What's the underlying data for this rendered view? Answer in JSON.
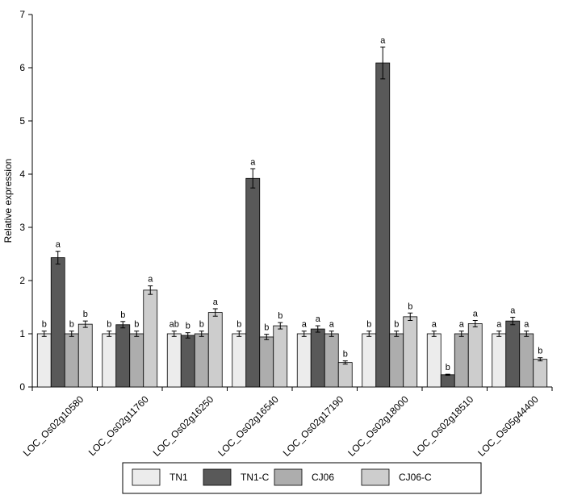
{
  "chart_data": {
    "type": "bar",
    "title": "",
    "xlabel": "",
    "ylabel": "Relative expression",
    "ylim": [
      0,
      7
    ],
    "yticks": [
      0,
      1,
      2,
      3,
      4,
      5,
      6,
      7
    ],
    "grid": false,
    "legend_position": "bottom",
    "categories": [
      "LOC_Os02g10580",
      "LOC_Os02g11760",
      "LOC_Os02g16250",
      "LOC_Os02g16540",
      "LOC_Os02g17190",
      "LOC_Os02g18000",
      "LOC_Os02g18510",
      "LOC_Os05g44400"
    ],
    "series": [
      {
        "name": "TN1",
        "color": "#ececec",
        "values": [
          1.0,
          1.0,
          1.0,
          1.0,
          1.0,
          1.0,
          1.0,
          1.0
        ],
        "errors": [
          0.05,
          0.05,
          0.05,
          0.05,
          0.05,
          0.05,
          0.05,
          0.05
        ],
        "significance": [
          "b",
          "b",
          "ab",
          "b",
          "a",
          "b",
          "a",
          "a"
        ]
      },
      {
        "name": "TN1-C",
        "color": "#595959",
        "values": [
          2.43,
          1.17,
          0.97,
          3.92,
          1.09,
          6.09,
          0.23,
          1.24
        ],
        "errors": [
          0.12,
          0.06,
          0.05,
          0.18,
          0.06,
          0.3,
          0.01,
          0.07
        ],
        "significance": [
          "a",
          "b",
          "b",
          "a",
          "a",
          "a",
          "b",
          "a"
        ]
      },
      {
        "name": "CJ06",
        "color": "#adadad",
        "values": [
          1.0,
          1.0,
          1.0,
          0.94,
          1.0,
          1.0,
          1.0,
          1.0
        ],
        "errors": [
          0.05,
          0.05,
          0.05,
          0.05,
          0.05,
          0.05,
          0.05,
          0.05
        ],
        "significance": [
          "b",
          "b",
          "b",
          "b",
          "a",
          "b",
          "a",
          "a"
        ]
      },
      {
        "name": "CJ06-C",
        "color": "#cdcdcd",
        "values": [
          1.18,
          1.82,
          1.4,
          1.15,
          0.46,
          1.32,
          1.19,
          0.52
        ],
        "errors": [
          0.06,
          0.08,
          0.07,
          0.06,
          0.03,
          0.07,
          0.06,
          0.03
        ],
        "significance": [
          "b",
          "a",
          "a",
          "b",
          "b",
          "b",
          "a",
          "b"
        ]
      }
    ]
  }
}
